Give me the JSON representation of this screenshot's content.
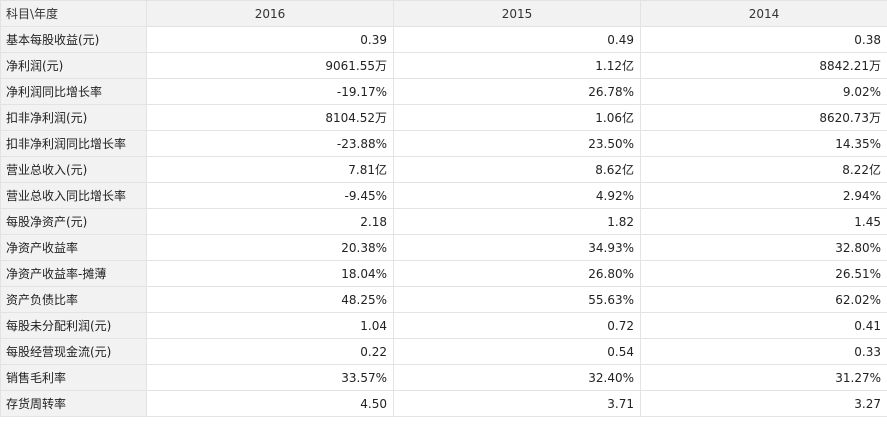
{
  "header": {
    "label": "科目\\年度",
    "years": [
      "2016",
      "2015",
      "2014"
    ]
  },
  "rows": [
    {
      "label": "基本每股收益(元)",
      "values": [
        "0.39",
        "0.49",
        "0.38"
      ]
    },
    {
      "label": "净利润(元)",
      "values": [
        "9061.55万",
        "1.12亿",
        "8842.21万"
      ]
    },
    {
      "label": "净利润同比增长率",
      "values": [
        "-19.17%",
        "26.78%",
        "9.02%"
      ]
    },
    {
      "label": "扣非净利润(元)",
      "values": [
        "8104.52万",
        "1.06亿",
        "8620.73万"
      ]
    },
    {
      "label": "扣非净利润同比增长率",
      "values": [
        "-23.88%",
        "23.50%",
        "14.35%"
      ]
    },
    {
      "label": "营业总收入(元)",
      "values": [
        "7.81亿",
        "8.62亿",
        "8.22亿"
      ]
    },
    {
      "label": "营业总收入同比增长率",
      "values": [
        "-9.45%",
        "4.92%",
        "2.94%"
      ]
    },
    {
      "label": "每股净资产(元)",
      "values": [
        "2.18",
        "1.82",
        "1.45"
      ]
    },
    {
      "label": "净资产收益率",
      "values": [
        "20.38%",
        "34.93%",
        "32.80%"
      ]
    },
    {
      "label": "净资产收益率-摊薄",
      "values": [
        "18.04%",
        "26.80%",
        "26.51%"
      ]
    },
    {
      "label": "资产负债比率",
      "values": [
        "48.25%",
        "55.63%",
        "62.02%"
      ]
    },
    {
      "label": "每股未分配利润(元)",
      "values": [
        "1.04",
        "0.72",
        "0.41"
      ]
    },
    {
      "label": "每股经营现金流(元)",
      "values": [
        "0.22",
        "0.54",
        "0.33"
      ]
    },
    {
      "label": "销售毛利率",
      "values": [
        "33.57%",
        "32.40%",
        "31.27%"
      ]
    },
    {
      "label": "存货周转率",
      "values": [
        "4.50",
        "3.71",
        "3.27"
      ]
    }
  ]
}
